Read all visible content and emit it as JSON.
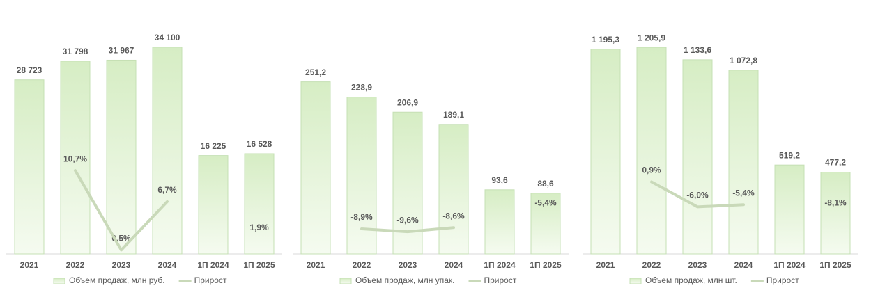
{
  "chart_data": [
    {
      "type": "bar",
      "categories": [
        "2021",
        "2022",
        "2023",
        "2024",
        "1П 2024",
        "1П 2025"
      ],
      "series": [
        {
          "name": "Объем продаж, млн руб.",
          "type": "bar",
          "color": "#c5e0b4",
          "values": [
            28723,
            31798,
            31967,
            34100,
            16225,
            16528
          ],
          "value_labels": [
            "28 723",
            "31 798",
            "31 967",
            "34 100",
            "16 225",
            "16 528"
          ]
        },
        {
          "name": "Прирост",
          "type": "line",
          "axis": "y2",
          "color": "#c9d9b9",
          "values": [
            null,
            10.7,
            0.5,
            6.7,
            null,
            1.9
          ],
          "value_labels": [
            null,
            "10,7%",
            "0,5%",
            "6,7%",
            null,
            "1,9%"
          ]
        }
      ],
      "ylim": [
        0,
        37300
      ],
      "y2lim": [
        0,
        29
      ],
      "legend": "bottom"
    },
    {
      "type": "bar",
      "categories": [
        "2021",
        "2022",
        "2023",
        "2024",
        "1П 2024",
        "1П 2025"
      ],
      "series": [
        {
          "name": "Объем продаж, млн упак.",
          "type": "bar",
          "color": "#c5e0b4",
          "values": [
            251.2,
            228.9,
            206.9,
            189.1,
            93.6,
            88.6
          ],
          "value_labels": [
            "251,2",
            "228,9",
            "206,9",
            "189,1",
            "93,6",
            "88,6"
          ]
        },
        {
          "name": "Прирост",
          "type": "line",
          "axis": "y2",
          "color": "#c9d9b9",
          "values": [
            null,
            -8.9,
            -9.6,
            -8.6,
            null,
            -5.4
          ],
          "value_labels": [
            null,
            "-8,9%",
            "-9,6%",
            "-8,6%",
            null,
            "-5,4%"
          ]
        }
      ],
      "ylim": [
        0,
        330
      ],
      "y2lim": [
        -15,
        40
      ],
      "legend": "bottom"
    },
    {
      "type": "bar",
      "categories": [
        "2021",
        "2022",
        "2023",
        "2024",
        "1П 2024",
        "1П 2025"
      ],
      "series": [
        {
          "name": "Объем продаж, млн шт.",
          "type": "bar",
          "color": "#c5e0b4",
          "values": [
            1195.3,
            1205.9,
            1133.6,
            1072.8,
            519.2,
            477.2
          ],
          "value_labels": [
            "1 195,3",
            "1 205,9",
            "1 133,6",
            "1 072,8",
            "519,2",
            "477,2"
          ]
        },
        {
          "name": "Прирост",
          "type": "line",
          "axis": "y2",
          "color": "#c9d9b9",
          "values": [
            null,
            0.9,
            -6.0,
            -5.4,
            null,
            -8.1
          ],
          "value_labels": [
            null,
            "0,9%",
            "-6,0%",
            "-5,4%",
            null,
            "-8,1%"
          ]
        }
      ],
      "ylim": [
        0,
        1320
      ],
      "y2lim": [
        -19,
        43.5
      ],
      "legend": "bottom"
    }
  ]
}
